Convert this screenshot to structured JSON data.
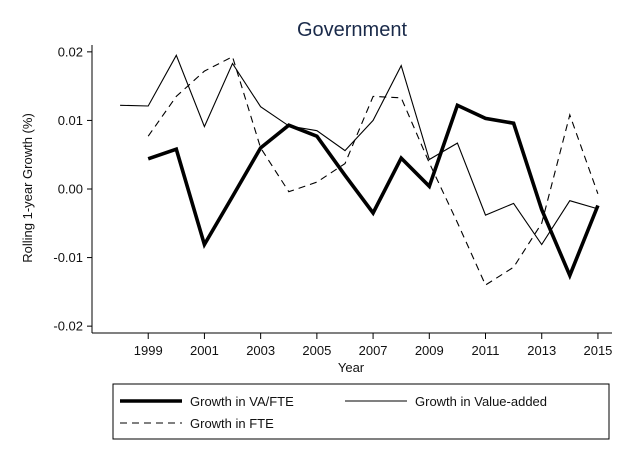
{
  "chart_data": {
    "type": "line",
    "title": "Government",
    "xlabel": "Year",
    "ylabel": "Rolling 1-year Growth (%)",
    "xlim": [
      1997,
      2015.5
    ],
    "ylim": [
      -0.021,
      0.021
    ],
    "x_ticks": [
      1999,
      2001,
      2003,
      2005,
      2007,
      2009,
      2011,
      2013,
      2015
    ],
    "y_ticks": [
      0.02,
      0.01,
      0.0,
      -0.01,
      -0.02
    ],
    "y_tick_labels": [
      "0.02",
      "0.01",
      "0.00",
      "-0.01",
      "-0.02"
    ],
    "grid": false,
    "legend_position": "bottom",
    "series": [
      {
        "name": "Growth in VA/FTE",
        "style": "thick-solid",
        "color": "#000000",
        "x": [
          1999,
          2000,
          2001,
          2002,
          2003,
          2004,
          2005,
          2006,
          2007,
          2008,
          2009,
          2010,
          2011,
          2012,
          2013,
          2014,
          2015
        ],
        "values": [
          0.0044,
          0.0058,
          -0.0081,
          -0.0011,
          0.006,
          0.0093,
          0.0077,
          0.002,
          -0.0035,
          0.0045,
          0.0004,
          0.0122,
          0.0103,
          0.0096,
          -0.003,
          -0.0126,
          -0.0024
        ]
      },
      {
        "name": "Growth in Value-added",
        "style": "thin-solid",
        "color": "#000000",
        "x": [
          1998,
          1999,
          2000,
          2001,
          2002,
          2003,
          2004,
          2005,
          2006,
          2007,
          2008,
          2009,
          2010,
          2011,
          2012,
          2013,
          2014,
          2015
        ],
        "values": [
          0.0122,
          0.0121,
          0.0195,
          0.0091,
          0.0183,
          0.012,
          0.0092,
          0.0085,
          0.0056,
          0.01,
          0.018,
          0.0043,
          0.0067,
          -0.0038,
          -0.0021,
          -0.0081,
          -0.0017,
          -0.0029
        ]
      },
      {
        "name": "Growth in FTE",
        "style": "dashed",
        "color": "#000000",
        "x": [
          1999,
          2000,
          2001,
          2002,
          2003,
          2004,
          2005,
          2006,
          2007,
          2008,
          2009,
          2010,
          2011,
          2012,
          2013,
          2014,
          2015
        ],
        "values": [
          0.0077,
          0.0135,
          0.0172,
          0.0193,
          0.006,
          -0.0004,
          0.001,
          0.0037,
          0.0135,
          0.0133,
          0.0038,
          -0.0049,
          -0.014,
          -0.0114,
          -0.005,
          0.0108,
          -0.0007
        ]
      }
    ]
  }
}
